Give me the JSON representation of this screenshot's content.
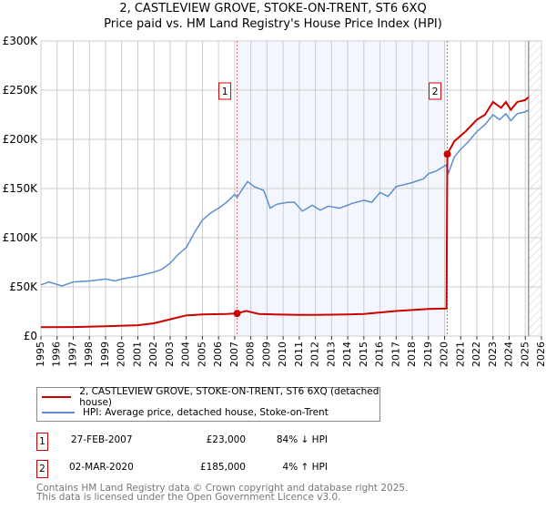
{
  "chart_data": {
    "type": "line",
    "title": "2, CASTLEVIEW GROVE, STOKE-ON-TRENT, ST6 6XQ",
    "subtitle": "Price paid vs. HM Land Registry's House Price Index (HPI)",
    "xlim": [
      1995,
      2026
    ],
    "ylim": [
      0,
      300000
    ],
    "x_ticks": [
      "1995",
      "1996",
      "1997",
      "1998",
      "1999",
      "2000",
      "2001",
      "2002",
      "2003",
      "2004",
      "2005",
      "2006",
      "2007",
      "2008",
      "2009",
      "2010",
      "2011",
      "2012",
      "2013",
      "2014",
      "2015",
      "2016",
      "2017",
      "2018",
      "2019",
      "2020",
      "2021",
      "2022",
      "2023",
      "2024",
      "2025",
      "2026"
    ],
    "y_ticks": [
      {
        "v": 0,
        "label": "£0"
      },
      {
        "v": 50000,
        "label": "£50K"
      },
      {
        "v": 100000,
        "label": "£100K"
      },
      {
        "v": 150000,
        "label": "£150K"
      },
      {
        "v": 200000,
        "label": "£200K"
      },
      {
        "v": 250000,
        "label": "£250K"
      },
      {
        "v": 300000,
        "label": "£300K"
      }
    ],
    "grid": true,
    "shaded_range": [
      2007.15,
      2020.17
    ],
    "forecast_from": 2025.2,
    "series": [
      {
        "name": "2, CASTLEVIEW GROVE, STOKE-ON-TRENT, ST6 6XQ (detached house)",
        "color": "#cc0000",
        "points": [
          [
            1995,
            9000
          ],
          [
            1997,
            9200
          ],
          [
            1999,
            10000
          ],
          [
            2001,
            11000
          ],
          [
            2002,
            13000
          ],
          [
            2003,
            17000
          ],
          [
            2004,
            21000
          ],
          [
            2005,
            22000
          ],
          [
            2006.5,
            22500
          ],
          [
            2007.15,
            23000
          ],
          [
            2007.7,
            25500
          ],
          [
            2008.5,
            22500
          ],
          [
            2009.5,
            22000
          ],
          [
            2011,
            21500
          ],
          [
            2012,
            21500
          ],
          [
            2014,
            22000
          ],
          [
            2015,
            22500
          ],
          [
            2016,
            24000
          ],
          [
            2017,
            25500
          ],
          [
            2018,
            26500
          ],
          [
            2019,
            27500
          ],
          [
            2020.12,
            28000
          ],
          [
            2020.17,
            185000
          ],
          [
            2020.6,
            198000
          ],
          [
            2021.3,
            208000
          ],
          [
            2022,
            220000
          ],
          [
            2022.5,
            225000
          ],
          [
            2023,
            238000
          ],
          [
            2023.5,
            232000
          ],
          [
            2023.8,
            238000
          ],
          [
            2024.1,
            230000
          ],
          [
            2024.5,
            238000
          ],
          [
            2025,
            240000
          ],
          [
            2025.2,
            243000
          ]
        ]
      },
      {
        "name": "HPI: Average price, detached house, Stoke-on-Trent",
        "color": "#5b8fd0",
        "points": [
          [
            1995,
            52000
          ],
          [
            1995.5,
            55000
          ],
          [
            1996.3,
            51000
          ],
          [
            1997,
            55000
          ],
          [
            1998,
            56000
          ],
          [
            1999,
            58000
          ],
          [
            1999.6,
            56000
          ],
          [
            2000,
            58000
          ],
          [
            2001,
            61000
          ],
          [
            2002,
            65000
          ],
          [
            2002.5,
            68000
          ],
          [
            2003,
            74000
          ],
          [
            2003.5,
            83000
          ],
          [
            2004,
            90000
          ],
          [
            2004.5,
            105000
          ],
          [
            2005,
            118000
          ],
          [
            2005.5,
            125000
          ],
          [
            2006,
            130000
          ],
          [
            2006.5,
            136000
          ],
          [
            2007,
            144000
          ],
          [
            2007.15,
            141000
          ],
          [
            2007.5,
            150000
          ],
          [
            2007.8,
            157000
          ],
          [
            2008.2,
            152000
          ],
          [
            2008.8,
            148000
          ],
          [
            2009.2,
            130000
          ],
          [
            2009.6,
            134000
          ],
          [
            2010.3,
            136000
          ],
          [
            2010.7,
            136000
          ],
          [
            2011.2,
            127000
          ],
          [
            2011.8,
            133000
          ],
          [
            2012.3,
            128000
          ],
          [
            2012.8,
            132000
          ],
          [
            2013.5,
            130000
          ],
          [
            2014.3,
            135000
          ],
          [
            2015,
            138000
          ],
          [
            2015.5,
            136000
          ],
          [
            2016,
            146000
          ],
          [
            2016.5,
            142000
          ],
          [
            2017,
            152000
          ],
          [
            2017.5,
            154000
          ],
          [
            2018,
            156000
          ],
          [
            2018.7,
            160000
          ],
          [
            2019,
            165000
          ],
          [
            2019.5,
            168000
          ],
          [
            2020.1,
            174000
          ],
          [
            2020.25,
            166000
          ],
          [
            2020.6,
            182000
          ],
          [
            2021,
            190000
          ],
          [
            2021.5,
            198000
          ],
          [
            2022,
            208000
          ],
          [
            2022.5,
            215000
          ],
          [
            2023,
            225000
          ],
          [
            2023.4,
            220000
          ],
          [
            2023.8,
            226000
          ],
          [
            2024.1,
            219000
          ],
          [
            2024.5,
            226000
          ],
          [
            2025,
            228000
          ],
          [
            2025.2,
            230000
          ]
        ]
      }
    ],
    "annotations": [
      {
        "label": "1",
        "x": 2007.15,
        "y": 23000
      },
      {
        "label": "2",
        "x": 2020.17,
        "y": 185000
      }
    ]
  },
  "sales": [
    {
      "num": "1",
      "date": "27-FEB-2007",
      "price": "£23,000",
      "hpi": "84% ↓ HPI"
    },
    {
      "num": "2",
      "date": "02-MAR-2020",
      "price": "£185,000",
      "hpi": "4% ↑ HPI"
    }
  ],
  "footer": {
    "line1": "Contains HM Land Registry data © Crown copyright and database right 2025.",
    "line2": "This data is licensed under the Open Government Licence v3.0."
  }
}
